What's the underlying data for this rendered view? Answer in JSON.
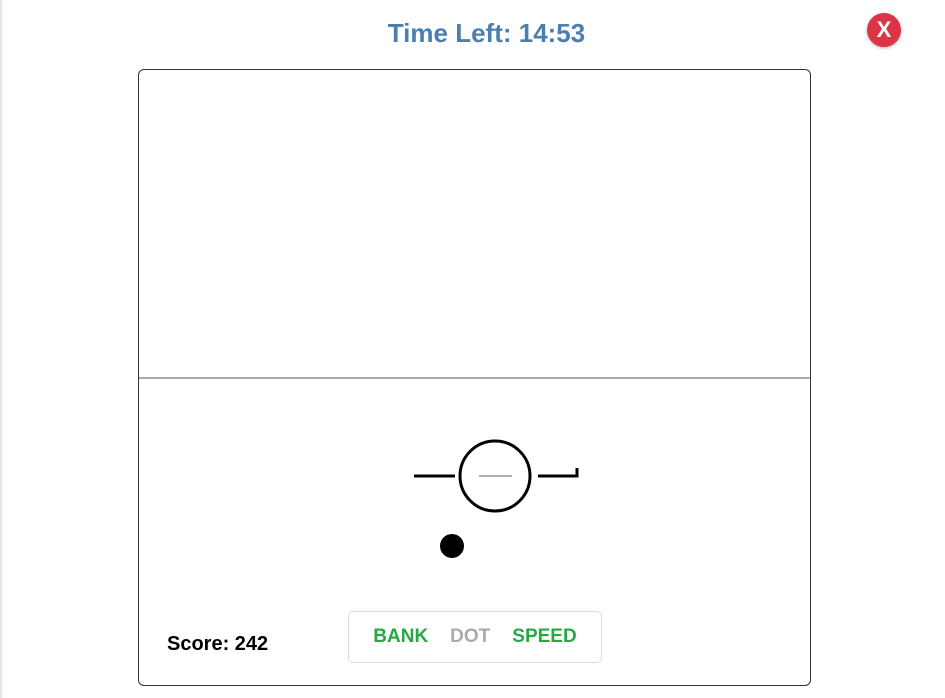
{
  "header": {
    "timer_label": "Time Left: 14:53",
    "close_label": "X"
  },
  "game": {
    "score_label": "Score: 242"
  },
  "modes": [
    {
      "label": "BANK",
      "active": true
    },
    {
      "label": "DOT",
      "active": false
    },
    {
      "label": "SPEED",
      "active": true
    }
  ],
  "colors": {
    "active": "#28a745",
    "inactive": "#aaaaaa",
    "timer": "#4a7fb0",
    "close": "#dc3545"
  }
}
